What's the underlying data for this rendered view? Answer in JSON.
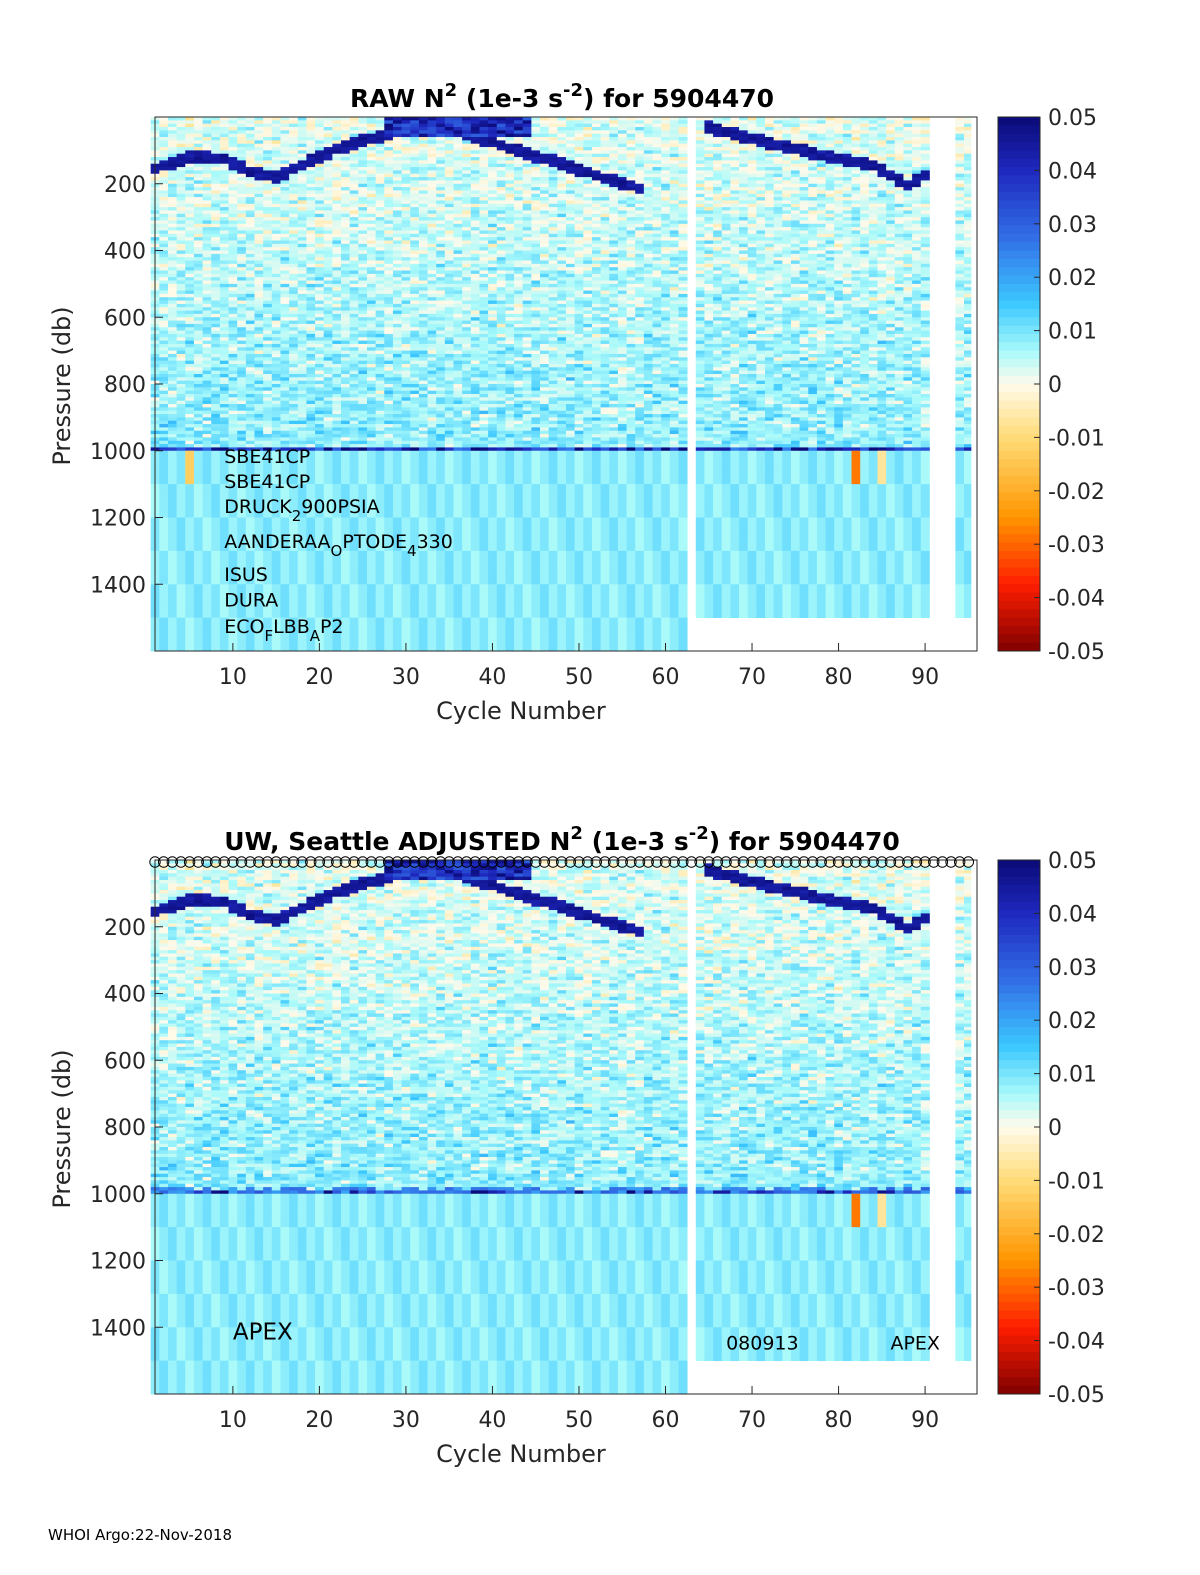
{
  "chart_data": [
    {
      "type": "heatmap",
      "title": {
        "prefix": "RAW N",
        "sup1": "2",
        "mid": " (1e-3 s",
        "sup2": "-2",
        "suffix": ") for 5904470"
      },
      "xlabel": "Cycle Number",
      "ylabel": "Pressure (db)",
      "xlim": [
        1,
        96
      ],
      "ylim": [
        0,
        1600
      ],
      "y_reversed": true,
      "xticks": [
        10,
        20,
        30,
        40,
        50,
        60,
        70,
        80,
        90
      ],
      "yticks": [
        200,
        400,
        600,
        800,
        1000,
        1200,
        1400
      ],
      "clim": [
        -0.05,
        0.05
      ],
      "colormap": "jet-like diverging (dark red to white to dark blue)",
      "colorbar_ticks": [
        "0.05",
        "0.04",
        "0.03",
        "0.02",
        "0.01",
        "0",
        "-0.01",
        "-0.02",
        "-0.03",
        "-0.04",
        "-0.05"
      ],
      "missing_cycles": [
        63,
        91,
        92,
        93
      ],
      "profile_max_pressure": [
        {
          "from": 1,
          "to": 62,
          "pressure": 1600
        },
        {
          "from": 64,
          "to": 90,
          "pressure": 1500
        },
        {
          "from": 94,
          "to": 95,
          "pressure": 1500
        }
      ],
      "features": {
        "strong_layer_pressure": 985,
        "shallow_band": [
          {
            "cycle": 1,
            "pressure": 150
          },
          {
            "cycle": 5,
            "pressure": 115
          },
          {
            "cycle": 9,
            "pressure": 120
          },
          {
            "cycle": 12,
            "pressure": 160
          },
          {
            "cycle": 15,
            "pressure": 175
          },
          {
            "cycle": 22,
            "pressure": 90
          },
          {
            "cycle": 30,
            "pressure": 30
          },
          {
            "cycle": 36,
            "pressure": 35
          },
          {
            "cycle": 42,
            "pressure": 90
          },
          {
            "cycle": 48,
            "pressure": 135
          },
          {
            "cycle": 52,
            "pressure": 170
          },
          {
            "cycle": 57,
            "pressure": 210
          },
          {
            "cycle": 64,
            "pressure": 20
          },
          {
            "cycle": 70,
            "pressure": 60
          },
          {
            "cycle": 78,
            "pressure": 110
          },
          {
            "cycle": 84,
            "pressure": 140
          },
          {
            "cycle": 88,
            "pressure": 200
          },
          {
            "cycle": 90,
            "pressure": 170
          }
        ],
        "negative_spikes": [
          {
            "cycle": 5,
            "from": 1000,
            "to": 1100,
            "value": -0.013
          },
          {
            "cycle": 82,
            "from": 1000,
            "to": 1100,
            "value": -0.028
          },
          {
            "cycle": 85,
            "from": 1000,
            "to": 1100,
            "value": -0.007
          }
        ]
      },
      "annotations": [
        {
          "parts": [
            {
              "t": "SBE41CP"
            }
          ],
          "cycle": 9,
          "pressure": 1015
        },
        {
          "parts": [
            {
              "t": "SBE41CP"
            }
          ],
          "cycle": 9,
          "pressure": 1090
        },
        {
          "parts": [
            {
              "t": "DRUCK"
            },
            {
              "t": "2",
              "sub": true
            },
            {
              "t": "900PSIA"
            }
          ],
          "cycle": 9,
          "pressure": 1165
        },
        {
          "parts": [
            {
              "t": "AANDERAA"
            },
            {
              "t": "O",
              "sub": true
            },
            {
              "t": "PTODE"
            },
            {
              "t": "4",
              "sub": true
            },
            {
              "t": "330"
            }
          ],
          "cycle": 9,
          "pressure": 1270
        },
        {
          "parts": [
            {
              "t": "ISUS"
            }
          ],
          "cycle": 9,
          "pressure": 1370
        },
        {
          "parts": [
            {
              "t": "DURA"
            }
          ],
          "cycle": 9,
          "pressure": 1445
        },
        {
          "parts": [
            {
              "t": "ECO"
            },
            {
              "t": "F",
              "sub": true
            },
            {
              "t": "LBB"
            },
            {
              "t": "A",
              "sub": true
            },
            {
              "t": "P2"
            }
          ],
          "cycle": 9,
          "pressure": 1525
        }
      ]
    },
    {
      "type": "heatmap",
      "title": {
        "prefix": "UW, Seattle  ADJUSTED N",
        "sup1": "2",
        "mid": " (1e-3 s",
        "sup2": "-2",
        "suffix": ") for 5904470"
      },
      "xlabel": "Cycle Number",
      "ylabel": "Pressure (db)",
      "xlim": [
        1,
        96
      ],
      "ylim": [
        0,
        1600
      ],
      "y_reversed": true,
      "xticks": [
        10,
        20,
        30,
        40,
        50,
        60,
        70,
        80,
        90
      ],
      "yticks": [
        200,
        400,
        600,
        800,
        1000,
        1200,
        1400
      ],
      "clim": [
        -0.05,
        0.05
      ],
      "colorbar_ticks": [
        "0.05",
        "0.04",
        "0.03",
        "0.02",
        "0.01",
        "0",
        "-0.01",
        "-0.02",
        "-0.03",
        "-0.04",
        "-0.05"
      ],
      "qc_marker_row": {
        "symbol": "circle",
        "pressure": 0,
        "cycles": "all"
      },
      "missing_cycles": [
        63,
        91,
        92,
        93
      ],
      "annotations": [
        {
          "parts": [
            {
              "t": "APEX"
            }
          ],
          "cycle": 10,
          "pressure": 1410,
          "size": "large"
        },
        {
          "parts": [
            {
              "t": "080913"
            }
          ],
          "cycle": 67,
          "pressure": 1445
        },
        {
          "parts": [
            {
              "t": "APEX"
            }
          ],
          "cycle": 86,
          "pressure": 1445
        }
      ]
    }
  ],
  "footer": "WHOI Argo:22-Nov-2018"
}
